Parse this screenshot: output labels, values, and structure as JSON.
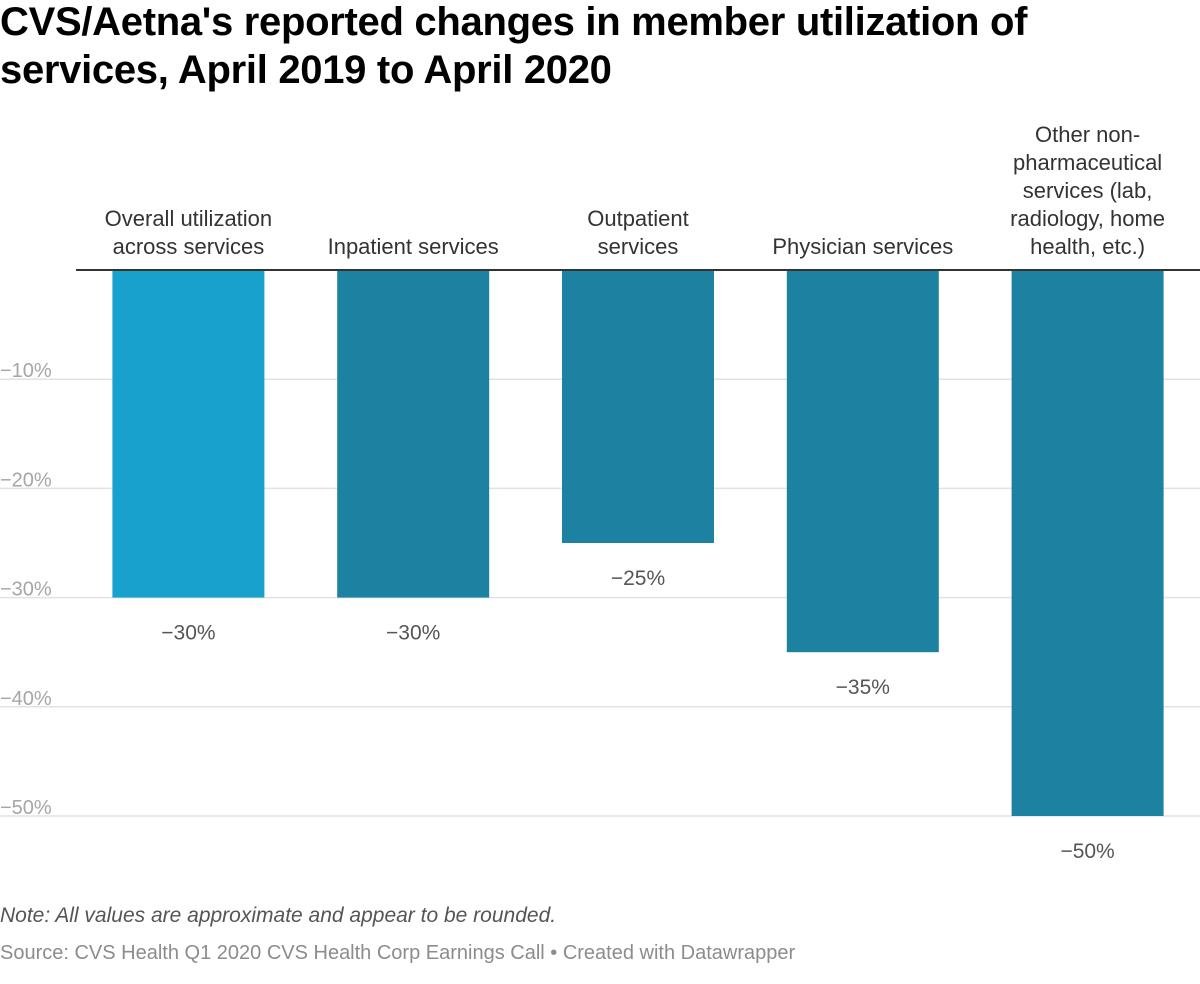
{
  "title": "CVS/Aetna's reported changes in member utilization of services, April 2019 to April 2020",
  "chart_data": {
    "type": "bar",
    "categories": [
      "Overall utilization across services",
      "Inpatient services",
      "Outpatient services",
      "Physician services",
      "Other non-pharmaceutical services (lab, radiology, home health, etc.)"
    ],
    "category_label_lines": [
      [
        "Overall utilization",
        "across services"
      ],
      [
        "Inpatient services"
      ],
      [
        "Outpatient",
        "services"
      ],
      [
        "Physician services"
      ],
      [
        "Other non-",
        "pharmaceutical",
        "services (lab,",
        "radiology, home",
        "health, etc.)"
      ]
    ],
    "values": [
      -30,
      -30,
      -25,
      -35,
      -50
    ],
    "value_labels": [
      "−30%",
      "−30%",
      "−25%",
      "−35%",
      "−50%"
    ],
    "yticks": [
      -10,
      -20,
      -30,
      -40,
      -50
    ],
    "ytick_labels": [
      "−10%",
      "−20%",
      "−30%",
      "−40%",
      "−50%"
    ],
    "ylim": [
      -50,
      0
    ],
    "grid": true,
    "colors": {
      "highlight": "#18a1cd",
      "bar": "#1d81a2",
      "gridline": "#e2e2e2",
      "baseline": "#333333"
    },
    "highlight_index": 0
  },
  "note": "Note: All values are approximate and appear to be rounded.",
  "source": "Source: CVS Health Q1 2020 CVS Health Corp Earnings Call • Created with Datawrapper"
}
